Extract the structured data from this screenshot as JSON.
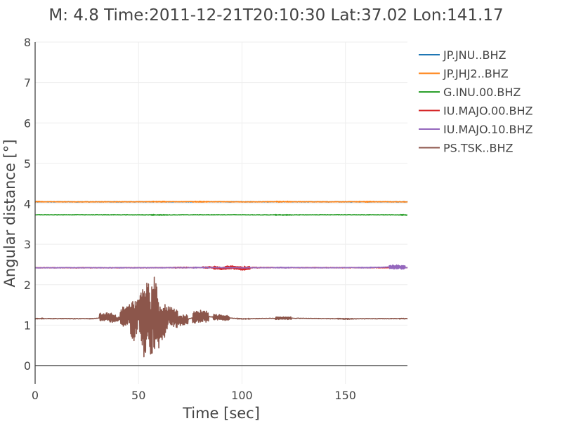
{
  "chart_data": {
    "type": "line",
    "title": "M: 4.8 Time:2011-12-21T20:10:30 Lat:37.02 Lon:141.17",
    "xlabel": "Time [sec]",
    "ylabel": "Angular distance [°]",
    "xlim": [
      0,
      180
    ],
    "ylim": [
      -0.45,
      8
    ],
    "xticks": [
      0,
      50,
      100,
      150
    ],
    "yticks": [
      0,
      1,
      2,
      3,
      4,
      5,
      6,
      7,
      8
    ],
    "grid": true,
    "legend_position": "top-right",
    "series": [
      {
        "name": "JP.JNU..BHZ",
        "color": "#1f77b4",
        "baseline": 4.05,
        "x": [
          0,
          20,
          40,
          60,
          80,
          100,
          120,
          140,
          160,
          180
        ],
        "y": [
          4.05,
          4.05,
          4.05,
          4.05,
          4.05,
          4.05,
          4.05,
          4.05,
          4.05,
          4.05
        ]
      },
      {
        "name": "JP.JHJ2..BHZ",
        "color": "#ff7f0e",
        "baseline": 4.05,
        "x": [
          0,
          20,
          40,
          60,
          80,
          100,
          120,
          140,
          160,
          180
        ],
        "y": [
          4.06,
          4.05,
          4.05,
          4.06,
          4.06,
          4.05,
          4.06,
          4.05,
          4.06,
          4.05
        ]
      },
      {
        "name": "G.INU.00.BHZ",
        "color": "#2ca02c",
        "baseline": 3.73,
        "x": [
          0,
          20,
          40,
          60,
          80,
          100,
          120,
          140,
          160,
          180
        ],
        "y": [
          3.73,
          3.73,
          3.73,
          3.72,
          3.73,
          3.73,
          3.72,
          3.73,
          3.73,
          3.72
        ]
      },
      {
        "name": "IU.MAJO.00.BHZ",
        "color": "#d62728",
        "baseline": 2.42,
        "x": [
          0,
          20,
          40,
          55,
          70,
          85,
          90,
          95,
          100,
          105,
          180
        ],
        "y": [
          2.42,
          2.42,
          2.42,
          2.42,
          2.43,
          2.44,
          2.38,
          2.47,
          2.36,
          2.43,
          2.42
        ]
      },
      {
        "name": "IU.MAJO.10.BHZ",
        "color": "#9467bd",
        "baseline": 2.42,
        "x": [
          0,
          20,
          40,
          60,
          80,
          100,
          120,
          140,
          160,
          175,
          180
        ],
        "y": [
          2.42,
          2.42,
          2.42,
          2.42,
          2.43,
          2.42,
          2.43,
          2.42,
          2.43,
          2.48,
          2.42
        ]
      },
      {
        "name": "PS.TSK..BHZ",
        "color": "#8c564b",
        "baseline": 1.16,
        "x": [
          0,
          20,
          28,
          35,
          40,
          45,
          48,
          50,
          53,
          55,
          56,
          57,
          60,
          65,
          70,
          80,
          90,
          100,
          120,
          150,
          180
        ],
        "y": [
          1.17,
          1.16,
          1.16,
          1.3,
          1.1,
          1.5,
          0.9,
          1.75,
          0.8,
          2.15,
          -0.02,
          1.8,
          0.6,
          1.45,
          1.0,
          1.35,
          1.25,
          1.15,
          1.2,
          1.15,
          1.17
        ]
      }
    ]
  }
}
